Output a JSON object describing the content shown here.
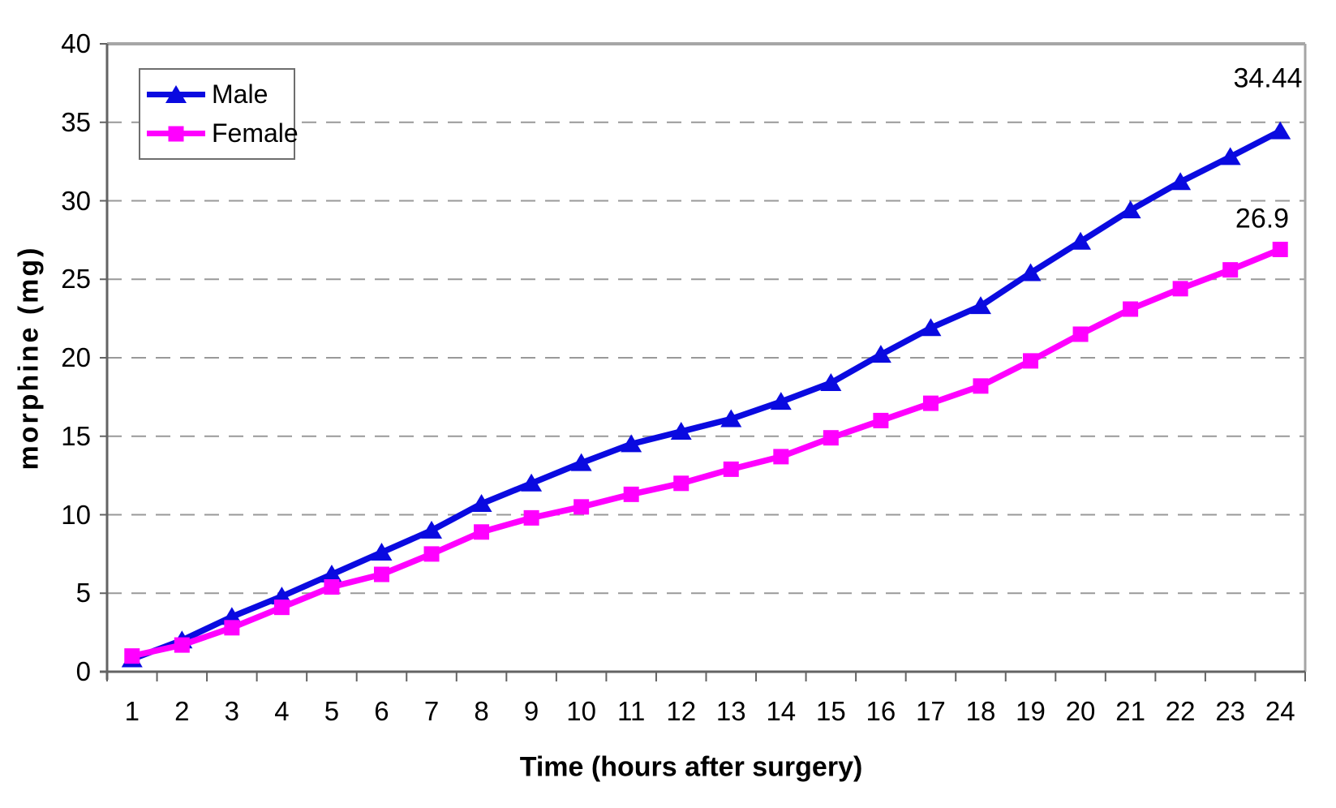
{
  "chart_data": {
    "type": "line",
    "title": "",
    "xlabel": "Time (hours after surgery)",
    "ylabel": "morphine (mg)",
    "x": [
      1,
      2,
      3,
      4,
      5,
      6,
      7,
      8,
      9,
      10,
      11,
      12,
      13,
      14,
      15,
      16,
      17,
      18,
      19,
      20,
      21,
      22,
      23,
      24
    ],
    "series": [
      {
        "name": "Male",
        "color": "#0a0ae0",
        "marker": "triangle",
        "values": [
          0.8,
          2.0,
          3.5,
          4.8,
          6.2,
          7.6,
          9.0,
          10.7,
          12.0,
          13.3,
          14.5,
          15.3,
          16.1,
          17.2,
          18.4,
          20.2,
          21.9,
          23.3,
          25.4,
          27.4,
          29.4,
          31.2,
          32.8,
          34.44
        ]
      },
      {
        "name": "Female",
        "color": "#ff00ff",
        "marker": "square",
        "values": [
          1.0,
          1.7,
          2.8,
          4.1,
          5.4,
          6.2,
          7.5,
          8.9,
          9.8,
          10.5,
          11.3,
          12.0,
          12.9,
          13.7,
          14.9,
          16.0,
          17.1,
          18.2,
          19.8,
          21.5,
          23.1,
          24.4,
          25.6,
          26.9
        ]
      }
    ],
    "ylim": [
      0,
      40
    ],
    "ytick_step": 5,
    "grid": "horizontal dashed",
    "legend_position": "top-left inside plot",
    "annotations": [
      {
        "text": "34.44",
        "series": "Male",
        "x": 24,
        "y": 34.44
      },
      {
        "text": "26.9",
        "series": "Female",
        "x": 24,
        "y": 26.9
      }
    ],
    "colors": {
      "gridline": "#999999",
      "axis": "#636363",
      "plot_border": "#a6a6a6",
      "text": "#000000",
      "background": "#ffffff"
    }
  }
}
